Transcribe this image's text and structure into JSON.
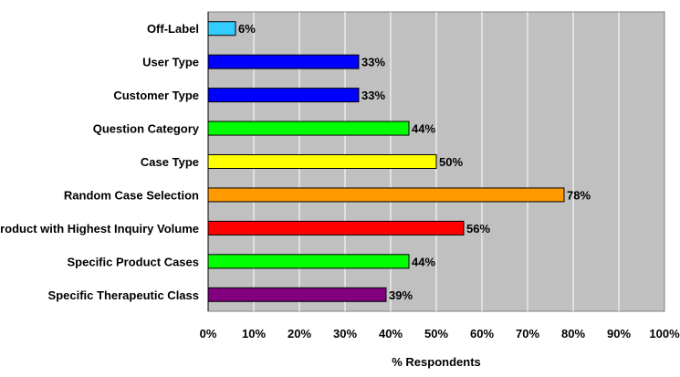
{
  "chart_data": {
    "type": "bar",
    "orientation": "horizontal",
    "categories": [
      "Off-Label",
      "User Type",
      "Customer Type",
      "Question Category",
      "Case Type",
      "Random Case Selection",
      "Product with Highest Inquiry Volume",
      "Specific Product Cases",
      "Specific Therapeutic Class"
    ],
    "values": [
      6,
      33,
      33,
      44,
      50,
      78,
      56,
      44,
      39
    ],
    "data_labels": [
      "6%",
      "33%",
      "33%",
      "44%",
      "50%",
      "78%",
      "56%",
      "44%",
      "39%"
    ],
    "bar_colors": [
      "#33ccff",
      "#0000ff",
      "#0000ff",
      "#00ff00",
      "#ffff00",
      "#ff9900",
      "#ff0000",
      "#00ff00",
      "#800080"
    ],
    "xlabel": "% Respondents",
    "ylabel": "",
    "title": "",
    "xlim": [
      0,
      100
    ],
    "x_ticks": [
      "0%",
      "10%",
      "20%",
      "30%",
      "40%",
      "50%",
      "60%",
      "70%",
      "80%",
      "90%",
      "100%"
    ],
    "grid": "vertical",
    "legend": "none",
    "plot_background": "#c0c0c0",
    "grid_color": "#ffffff"
  }
}
